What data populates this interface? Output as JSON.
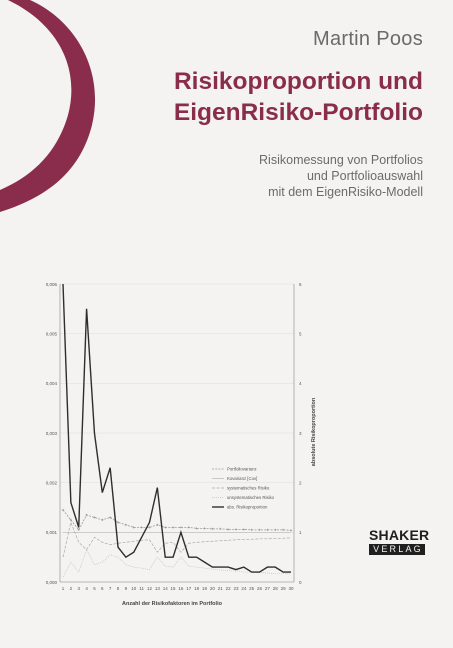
{
  "author": "Martin Poos",
  "title": {
    "line1": "Risikoproportion und",
    "line2": "EigenRisiko-Portfolio"
  },
  "subtitle": {
    "line1": "Risikomessung von Portfolios",
    "line2": "und Portfolioauswahl",
    "line3": "mit dem EigenRisiko-Modell"
  },
  "publisher": {
    "top": "SHAKER",
    "bottom": "VERLAG"
  },
  "colors": {
    "accent": "#8a2d4c",
    "text_gray": "#6b6b6b"
  },
  "chart_data": {
    "type": "line",
    "xlabel": "Anzahl der Risikofaktoren im Portfolio",
    "ylabel": "",
    "y2label": "absolute Risikoproportion",
    "x": [
      1,
      2,
      3,
      4,
      5,
      6,
      7,
      8,
      9,
      10,
      11,
      12,
      13,
      14,
      15,
      16,
      17,
      18,
      19,
      20,
      21,
      22,
      23,
      24,
      25,
      26,
      27,
      28,
      29,
      30
    ],
    "ylim": [
      0,
      0.006
    ],
    "y2lim": [
      0,
      6
    ],
    "yticks": [
      "0,000",
      "0,001",
      "0,002",
      "0,003",
      "0,004",
      "0,005",
      "0,006"
    ],
    "y2ticks": [
      "0",
      "1",
      "2",
      "3",
      "4",
      "5",
      "6"
    ],
    "legend_position": "right",
    "series": [
      {
        "name": "Portfoliovarianz",
        "axis": "left",
        "values": [
          0.00145,
          0.00125,
          0.00105,
          0.00135,
          0.0013,
          0.00125,
          0.0013,
          0.0012,
          0.00115,
          0.0011,
          0.0011,
          0.0011,
          0.00115,
          0.0011,
          0.0011,
          0.0011,
          0.0011,
          0.00108,
          0.00108,
          0.00107,
          0.00107,
          0.00106,
          0.00106,
          0.00106,
          0.00105,
          0.00105,
          0.00105,
          0.00105,
          0.00105,
          0.00104
        ]
      },
      {
        "name": "Kovarianz [Cov]",
        "axis": "left",
        "values": [
          0.001,
          0.001,
          0.001,
          0.001,
          0.001,
          0.001,
          0.001,
          0.001,
          0.001,
          0.001,
          0.001,
          0.001,
          0.001,
          0.001,
          0.001,
          0.001,
          0.001,
          0.001,
          0.001,
          0.001,
          0.001,
          0.001,
          0.001,
          0.001,
          0.001,
          0.001,
          0.001,
          0.001,
          0.001,
          0.001
        ]
      },
      {
        "name": "systematisches Risiko",
        "axis": "left",
        "values": [
          0.0005,
          0.0012,
          0.0008,
          0.00065,
          0.0009,
          0.0008,
          0.00075,
          0.00078,
          0.0008,
          0.00082,
          0.00084,
          0.00085,
          0.0006,
          0.00078,
          0.0008,
          0.0006,
          0.00078,
          0.0008,
          0.00081,
          0.00082,
          0.00083,
          0.00084,
          0.00085,
          0.00086,
          0.00086,
          0.00087,
          0.00087,
          0.00088,
          0.00088,
          0.00089
        ]
      },
      {
        "name": "unsystematisches Risiko",
        "axis": "left",
        "values": [
          0.0001,
          0.0004,
          0.0002,
          0.00065,
          0.00035,
          0.0004,
          0.00055,
          0.0005,
          0.00035,
          0.0003,
          0.00028,
          0.00025,
          0.0005,
          0.00032,
          0.0003,
          0.0005,
          0.00032,
          0.0003,
          0.00028,
          0.00026,
          0.00024,
          0.00023,
          0.00022,
          0.0002,
          0.0002,
          0.00019,
          0.00018,
          0.00017,
          0.00017,
          0.00016
        ]
      },
      {
        "name": "abs. Risikoproportion",
        "axis": "right",
        "values": [
          6.0,
          1.6,
          1.1,
          5.5,
          3.0,
          1.8,
          2.3,
          0.7,
          0.5,
          0.6,
          0.9,
          1.2,
          1.9,
          0.5,
          0.5,
          1.0,
          0.5,
          0.5,
          0.4,
          0.3,
          0.3,
          0.3,
          0.25,
          0.3,
          0.2,
          0.2,
          0.3,
          0.3,
          0.2,
          0.2
        ]
      }
    ]
  }
}
